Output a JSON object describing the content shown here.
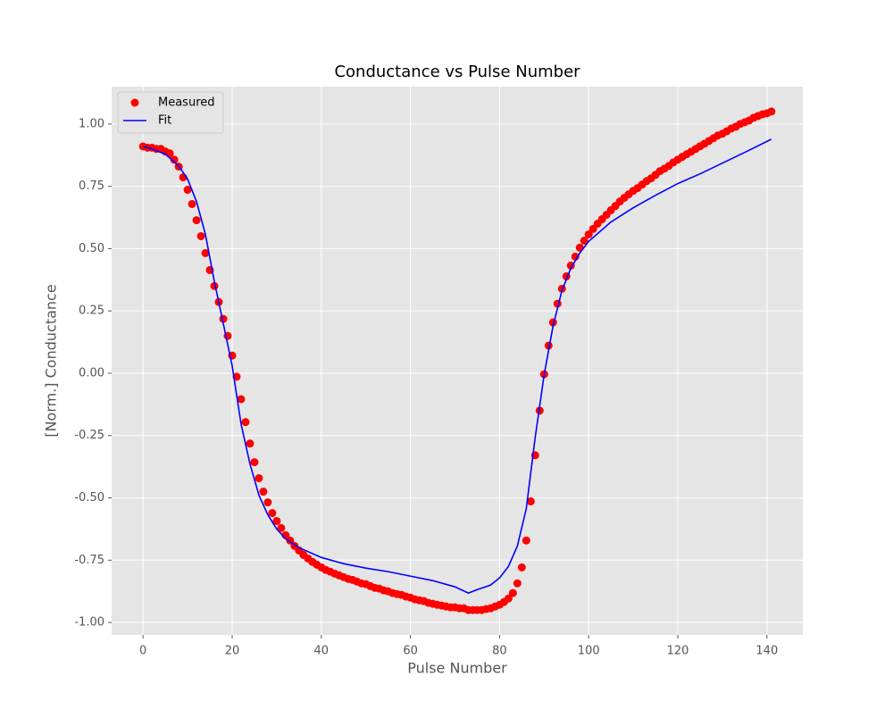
{
  "chart_data": {
    "type": "scatter",
    "title": "Conductance vs Pulse Number",
    "x_label": "Pulse Number",
    "y_label": "[Norm.] Conductance",
    "xlim": [
      -7.05,
      148.05
    ],
    "ylim": [
      -1.05,
      1.15
    ],
    "xticks": [
      0,
      20,
      40,
      60,
      80,
      100,
      120,
      140
    ],
    "yticks": [
      {
        "value": -1,
        "label": "-1.00"
      },
      {
        "value": -0.75,
        "label": "-0.75"
      },
      {
        "value": -0.5,
        "label": "-0.50"
      },
      {
        "value": -0.25,
        "label": "-0.25"
      },
      {
        "value": 0,
        "label": "0.00"
      },
      {
        "value": 0.25,
        "label": "0.25"
      },
      {
        "value": 0.5,
        "label": "0.50"
      },
      {
        "value": 0.75,
        "label": "0.75"
      },
      {
        "value": 1,
        "label": "1.00"
      }
    ],
    "grid": true,
    "legend_loc": "upper left",
    "series": [
      {
        "name": "Measured",
        "type": "scatter",
        "color": "#ff0000",
        "x": [
          0,
          1,
          2,
          3,
          4,
          5,
          6,
          7,
          8,
          9,
          10,
          11,
          12,
          13,
          14,
          15,
          16,
          17,
          18,
          19,
          20,
          21,
          22,
          23,
          24,
          25,
          26,
          27,
          28,
          29,
          30,
          31,
          32,
          33,
          34,
          35,
          36,
          37,
          38,
          39,
          40,
          41,
          42,
          43,
          44,
          45,
          46,
          47,
          48,
          49,
          50,
          51,
          52,
          53,
          54,
          55,
          56,
          57,
          58,
          59,
          60,
          61,
          62,
          63,
          64,
          65,
          66,
          67,
          68,
          69,
          70,
          71,
          72,
          73,
          74,
          75,
          76,
          77,
          78,
          79,
          80,
          81,
          82,
          83,
          84,
          85,
          86,
          87,
          88,
          89,
          90,
          91,
          92,
          93,
          94,
          95,
          96,
          97,
          98,
          99,
          100,
          101,
          102,
          103,
          104,
          105,
          106,
          107,
          108,
          109,
          110,
          111,
          112,
          113,
          114,
          115,
          116,
          117,
          118,
          119,
          120,
          121,
          122,
          123,
          124,
          125,
          126,
          127,
          128,
          129,
          130,
          131,
          132,
          133,
          134,
          135,
          136,
          137,
          138,
          139,
          140,
          141
        ],
        "values": [
          0.91,
          0.905,
          0.905,
          0.9,
          0.9,
          0.89,
          0.882,
          0.857,
          0.829,
          0.786,
          0.736,
          0.679,
          0.614,
          0.55,
          0.482,
          0.414,
          0.35,
          0.286,
          0.218,
          0.15,
          0.071,
          -0.014,
          -0.104,
          -0.196,
          -0.282,
          -0.357,
          -0.421,
          -0.475,
          -0.518,
          -0.561,
          -0.593,
          -0.621,
          -0.65,
          -0.671,
          -0.693,
          -0.711,
          -0.729,
          -0.743,
          -0.757,
          -0.768,
          -0.779,
          -0.789,
          -0.796,
          -0.804,
          -0.811,
          -0.818,
          -0.825,
          -0.829,
          -0.836,
          -0.843,
          -0.846,
          -0.854,
          -0.861,
          -0.864,
          -0.871,
          -0.875,
          -0.882,
          -0.886,
          -0.889,
          -0.896,
          -0.9,
          -0.907,
          -0.911,
          -0.914,
          -0.921,
          -0.925,
          -0.929,
          -0.932,
          -0.936,
          -0.939,
          -0.939,
          -0.943,
          -0.943,
          -0.95,
          -0.95,
          -0.95,
          -0.95,
          -0.946,
          -0.943,
          -0.936,
          -0.929,
          -0.918,
          -0.904,
          -0.882,
          -0.843,
          -0.779,
          -0.671,
          -0.514,
          -0.329,
          -0.15,
          -0.004,
          0.111,
          0.204,
          0.279,
          0.339,
          0.389,
          0.432,
          0.468,
          0.504,
          0.532,
          0.557,
          0.579,
          0.6,
          0.618,
          0.636,
          0.654,
          0.671,
          0.689,
          0.704,
          0.718,
          0.732,
          0.743,
          0.757,
          0.771,
          0.782,
          0.796,
          0.811,
          0.821,
          0.832,
          0.846,
          0.857,
          0.868,
          0.879,
          0.889,
          0.9,
          0.911,
          0.921,
          0.932,
          0.943,
          0.954,
          0.961,
          0.971,
          0.982,
          0.989,
          1.0,
          1.007,
          1.014,
          1.025,
          1.032,
          1.039,
          1.043,
          1.05
        ]
      },
      {
        "name": "Fit",
        "type": "line",
        "color": "#0000ff",
        "x": [
          0,
          2,
          5,
          8,
          10,
          12,
          14,
          16,
          18,
          20,
          22,
          24,
          26,
          28,
          30,
          32,
          35,
          40,
          45,
          50,
          55,
          60,
          65,
          70,
          73,
          75,
          78,
          80,
          82,
          84,
          86,
          88,
          90,
          92,
          94,
          96,
          98,
          100,
          105,
          110,
          115,
          120,
          125,
          130,
          135,
          141
        ],
        "values": [
          0.91,
          0.9,
          0.879,
          0.832,
          0.779,
          0.689,
          0.557,
          0.368,
          0.2,
          0.03,
          -0.204,
          -0.364,
          -0.489,
          -0.568,
          -0.625,
          -0.664,
          -0.7,
          -0.739,
          -0.764,
          -0.782,
          -0.796,
          -0.814,
          -0.832,
          -0.857,
          -0.882,
          -0.868,
          -0.85,
          -0.821,
          -0.775,
          -0.693,
          -0.543,
          -0.257,
          -0.007,
          0.189,
          0.332,
          0.421,
          0.482,
          0.529,
          0.607,
          0.664,
          0.714,
          0.761,
          0.8,
          0.843,
          0.886,
          0.939
        ]
      }
    ]
  }
}
